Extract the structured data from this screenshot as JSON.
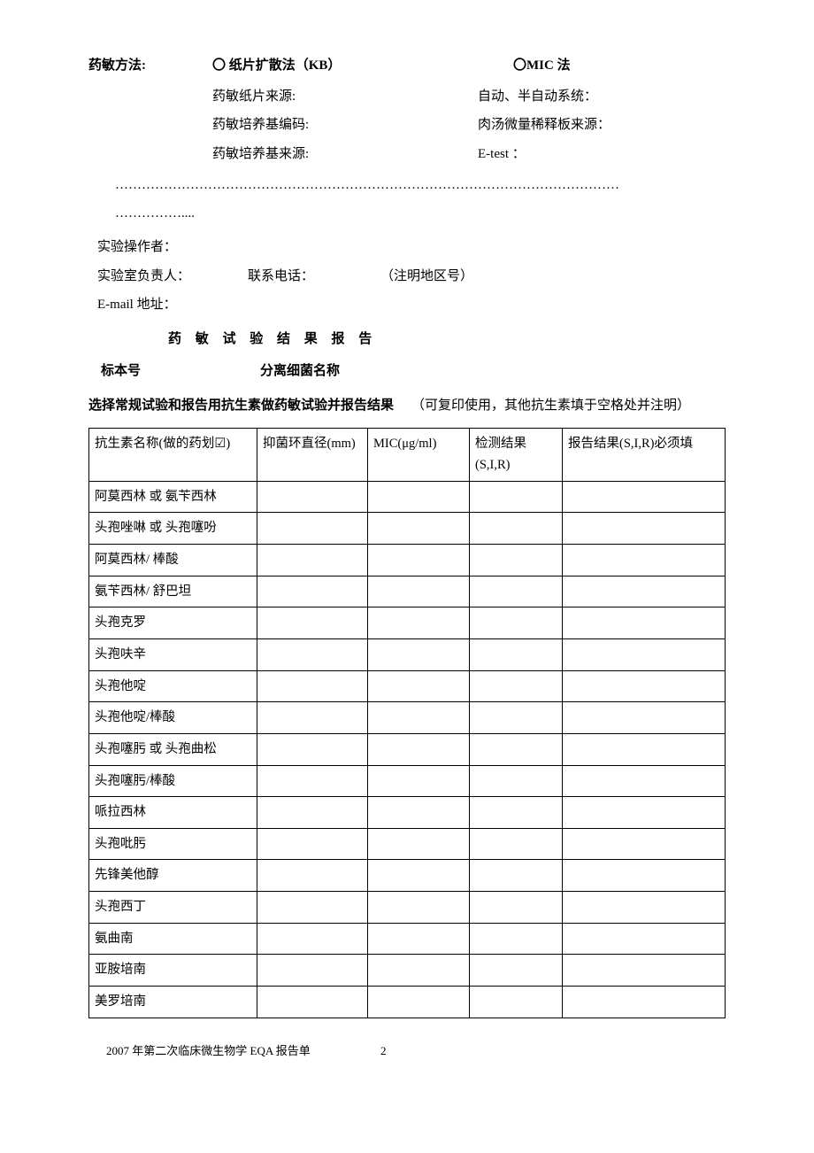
{
  "method": {
    "label": "药敏方法:",
    "option1": "〇 纸片扩散法（KB）",
    "option2": "〇MIC 法"
  },
  "subfields": {
    "left1": "药敏纸片来源:",
    "right1": "自动、半自动系统：",
    "left2": "药敏培养基编码:",
    "right2": "肉汤微量稀释板来源：",
    "left3": "药敏培养基来源:",
    "right3": "E-test ："
  },
  "dots1": "……………………………………………………………………………………………………",
  "dots2": "……………....",
  "operator": "实验操作者：",
  "contact": {
    "supervisor": "实验室负责人：",
    "phone": "联系电话：",
    "note": "（注明地区号）"
  },
  "email": "E-mail 地址：",
  "sectionTitle": "药 敏 试 验 结 果 报 告",
  "spec": {
    "num": "标本号",
    "name": "分离细菌名称"
  },
  "instruction": {
    "bold": "选择常规试验和报告用抗生素做药敏试验并报告结果",
    "normal": "（可复印使用，其他抗生素填于空格处并注明）"
  },
  "table": {
    "headers": {
      "col1": "抗生素名称(做的药划☑)",
      "col2": "抑菌环直径(mm)",
      "col3": "MIC(μg/ml)",
      "col4": "检测结果(S,I,R)",
      "col5": "报告结果(S,I,R)必须填"
    },
    "rows": [
      "阿莫西林 或 氨苄西林",
      "头孢唑啉 或 头孢噻吩",
      "阿莫西林/ 棒酸",
      "氨苄西林/ 舒巴坦",
      "头孢克罗",
      "头孢呋辛",
      "头孢他啶",
      "头孢他啶/棒酸",
      "头孢噻肟 或 头孢曲松",
      "头孢噻肟/棒酸",
      "哌拉西林",
      "头孢吡肟",
      "先锋美他醇",
      "头孢西丁",
      "氨曲南",
      "亚胺培南",
      "美罗培南"
    ]
  },
  "footer": {
    "text": "2007 年第二次临床微生物学 EQA 报告单",
    "page": "2"
  }
}
